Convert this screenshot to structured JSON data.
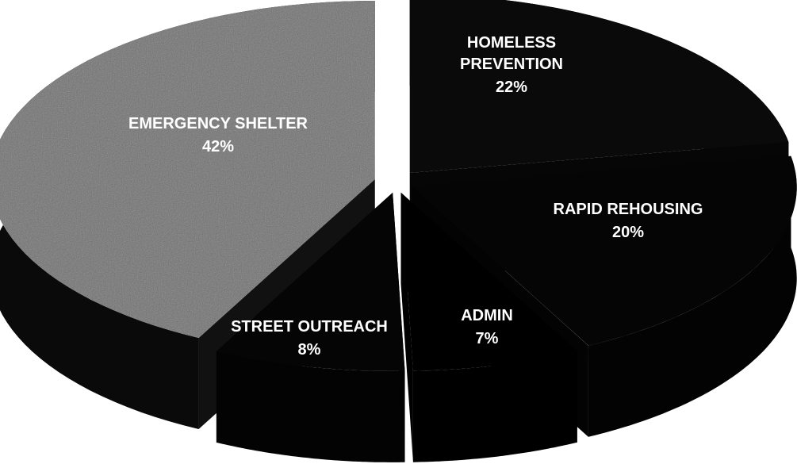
{
  "chart_data": {
    "type": "pie",
    "style": "3d-exploded",
    "title": "",
    "slices": [
      {
        "label": "HOMELESS PREVENTION",
        "value": 22,
        "value_label": "22%",
        "color": "#0a0a0a"
      },
      {
        "label": "RAPID REHOUSING",
        "value": 20,
        "value_label": "20%",
        "color": "#050505"
      },
      {
        "label": "ADMIN",
        "value": 7,
        "value_label": "7%",
        "color": "#000000"
      },
      {
        "label": "STREET OUTREACH",
        "value": 8,
        "value_label": "8%",
        "color": "#050505"
      },
      {
        "label": "EMERGENCY SHELTER",
        "value": 42,
        "value_label": "42%",
        "color": "#6f6f6f"
      }
    ]
  }
}
